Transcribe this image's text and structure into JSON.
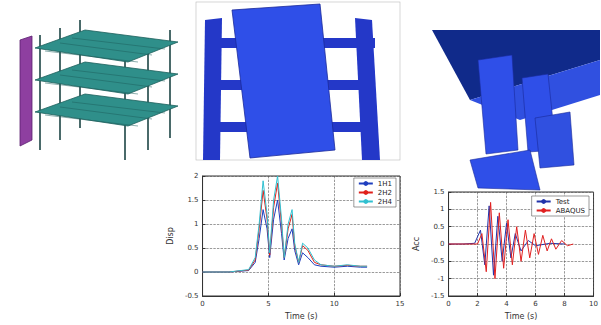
{
  "chart_data": [
    {
      "type": "line",
      "xlabel": "Time (s)",
      "ylabel": "Disp",
      "xlim": [
        0,
        15
      ],
      "xticks": [
        0,
        5,
        10,
        15
      ],
      "ylim": [
        -0.5,
        2
      ],
      "yticks": [
        -0.5,
        0,
        0.5,
        1,
        1.5,
        2
      ],
      "grid": true,
      "legend": "upper right",
      "series": [
        {
          "name": "1H1",
          "color": "#1f3fbf",
          "x": [
            0,
            2,
            3.5,
            4,
            4.3,
            4.6,
            4.9,
            5.1,
            5.4,
            5.7,
            6.0,
            6.2,
            6.5,
            6.8,
            7.0,
            7.3,
            7.6,
            8.0,
            8.5,
            9,
            10,
            11,
            12,
            12.5
          ],
          "values": [
            0,
            0,
            0.03,
            0.2,
            0.7,
            1.3,
            0.9,
            0.3,
            1.1,
            1.5,
            0.8,
            0.25,
            0.7,
            0.9,
            0.45,
            0.15,
            0.4,
            0.3,
            0.15,
            0.12,
            0.1,
            0.12,
            0.1,
            0.1
          ]
        },
        {
          "name": "2H2",
          "color": "#e0201a",
          "x": [
            0,
            2,
            3.5,
            4,
            4.3,
            4.6,
            4.9,
            5.1,
            5.4,
            5.7,
            6.0,
            6.2,
            6.5,
            6.8,
            7.0,
            7.3,
            7.6,
            8.0,
            8.5,
            9,
            10,
            11,
            12,
            12.5
          ],
          "values": [
            0,
            0,
            0.04,
            0.25,
            0.9,
            1.7,
            1.1,
            0.35,
            1.35,
            1.85,
            1.0,
            0.3,
            0.9,
            1.2,
            0.55,
            0.2,
            0.55,
            0.45,
            0.2,
            0.15,
            0.12,
            0.14,
            0.12,
            0.12
          ]
        },
        {
          "name": "2H4",
          "color": "#30c0d0",
          "x": [
            0,
            2,
            3.5,
            4,
            4.3,
            4.6,
            4.9,
            5.1,
            5.4,
            5.7,
            6.0,
            6.2,
            6.5,
            6.8,
            7.0,
            7.3,
            7.6,
            8.0,
            8.5,
            9,
            10,
            11,
            12,
            12.5
          ],
          "values": [
            0,
            0,
            0.05,
            0.3,
            1.0,
            1.9,
            1.2,
            0.4,
            1.5,
            2.0,
            1.1,
            0.3,
            1.0,
            1.3,
            0.6,
            0.2,
            0.6,
            0.5,
            0.25,
            0.15,
            0.12,
            0.15,
            0.12,
            0.12
          ]
        }
      ]
    },
    {
      "type": "line",
      "xlabel": "Time (s)",
      "ylabel": "Acc",
      "xlim": [
        0,
        10
      ],
      "xticks": [
        0,
        2,
        4,
        6,
        8,
        10
      ],
      "ylim": [
        -1.5,
        1.5
      ],
      "yticks": [
        -1.5,
        -1,
        -0.5,
        0,
        0.5,
        1,
        1.5
      ],
      "grid": true,
      "legend": "upper right",
      "series": [
        {
          "name": "Test",
          "color": "#2233aa",
          "x": [
            0,
            1,
            1.8,
            2.2,
            2.5,
            2.8,
            3.1,
            3.4,
            3.7,
            4.0,
            4.3,
            4.6,
            5.0,
            5.5,
            6.0,
            7.0,
            8.0
          ],
          "values": [
            0,
            0,
            0.02,
            0.4,
            -0.6,
            1.1,
            -0.9,
            0.8,
            -0.5,
            0.6,
            -0.4,
            0.3,
            -0.2,
            0.1,
            -0.05,
            0.02,
            0
          ]
        },
        {
          "name": "ABAQUS",
          "color": "#e02020",
          "x": [
            0,
            2,
            2.3,
            2.6,
            2.9,
            3.2,
            3.5,
            3.8,
            4.1,
            4.4,
            4.7,
            5.0,
            5.3,
            5.6,
            5.9,
            6.2,
            6.5,
            6.8,
            7.1,
            7.4,
            7.8,
            8.2,
            8.6
          ],
          "values": [
            0,
            0,
            0.3,
            -0.8,
            1.2,
            -1.0,
            0.9,
            -0.7,
            0.7,
            -0.6,
            0.5,
            -0.5,
            0.4,
            -0.4,
            0.3,
            -0.3,
            0.25,
            -0.2,
            0.15,
            -0.15,
            0.1,
            -0.05,
            0
          ]
        }
      ]
    }
  ]
}
